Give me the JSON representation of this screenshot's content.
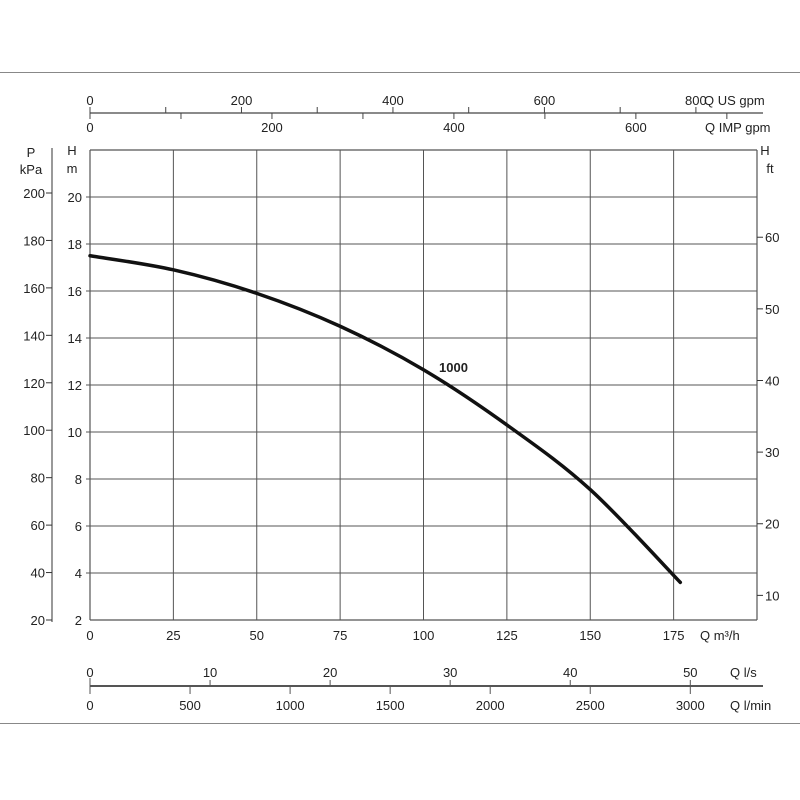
{
  "chart_data": {
    "type": "line",
    "title": "",
    "x": [
      0,
      25,
      50,
      75,
      100,
      125,
      150,
      177
    ],
    "series": [
      {
        "name": "1000",
        "values": [
          17.5,
          16.9,
          15.9,
          14.5,
          12.65,
          10.3,
          7.55,
          3.6
        ]
      }
    ],
    "xlim": [
      0,
      200
    ],
    "ylim": [
      2,
      22
    ],
    "grid": true,
    "axes": {
      "q_m3h": {
        "label": "Q m³/h",
        "ticks": [
          0,
          25,
          50,
          75,
          100,
          125,
          150,
          175
        ]
      },
      "h_m": {
        "label_top": "H",
        "label_unit": "m",
        "ticks": [
          2,
          4,
          6,
          8,
          10,
          12,
          14,
          16,
          18,
          20
        ]
      },
      "p_kpa": {
        "label_top": "P",
        "label_unit": "kPa",
        "ticks": [
          20,
          40,
          60,
          80,
          100,
          120,
          140,
          160,
          180,
          200
        ]
      },
      "h_ft": {
        "label_top": "H",
        "label_unit": "ft",
        "ticks": [
          10,
          20,
          30,
          40,
          50,
          60
        ]
      },
      "q_us_gpm": {
        "label": "Q US gpm",
        "ticks": [
          0,
          200,
          400,
          600,
          800
        ]
      },
      "q_imp_gpm": {
        "label": "Q IMP gpm",
        "ticks": [
          0,
          200,
          400,
          600
        ]
      },
      "q_ls": {
        "label": "Q l/s",
        "ticks": [
          0,
          10,
          20,
          30,
          40,
          50
        ]
      },
      "q_lmin": {
        "label": "Q l/min",
        "ticks": [
          0,
          500,
          1000,
          1500,
          2000,
          2500,
          3000
        ]
      }
    },
    "curve_label": "1000",
    "colors": {
      "curve": "#111111",
      "grid": "#555555"
    }
  }
}
